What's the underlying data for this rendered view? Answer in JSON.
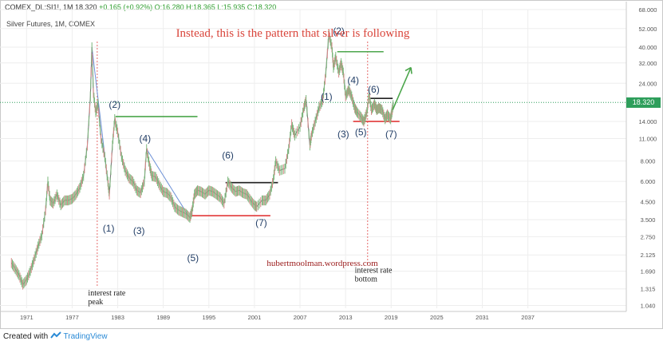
{
  "header": {
    "symbol_line": "COMEX_DL:SI1!, 1M 18.320",
    "change": "+0.165 (+0.92%)",
    "ohlc": "O:16.280 H:18.365 L:15.935 C:18.320",
    "subtitle": "Silver Futures, 1M, COMEX"
  },
  "footer": {
    "created_with": "Created with",
    "brand": "TradingView"
  },
  "chart_data": {
    "type": "line",
    "title": "Instead, this is the pattern that silver is following",
    "watermark": "hubertmoolman.wordpress.com",
    "y_scale": "log",
    "ylim": [
      1.0,
      68.0
    ],
    "xlim": [
      1968.0,
      2040.0
    ],
    "x_ticks": [
      "1971",
      "1977",
      "1983",
      "1989",
      "1995",
      "2001",
      "2007",
      "2013",
      "2019",
      "2025",
      "2031",
      "2037"
    ],
    "y_ticks": [
      "68.000",
      "52.000",
      "40.000",
      "32.000",
      "24.000",
      "18.320",
      "14.000",
      "11.000",
      "8.000",
      "6.000",
      "4.500",
      "3.500",
      "2.750",
      "2.125",
      "1.690",
      "1.315",
      "1.040"
    ],
    "last_price": "18.320",
    "series": [
      {
        "values": [
          [
            1969.5,
            1.9
          ],
          [
            1970.0,
            1.75
          ],
          [
            1970.5,
            1.6
          ],
          [
            1971.0,
            1.4
          ],
          [
            1971.5,
            1.5
          ],
          [
            1972.0,
            1.7
          ],
          [
            1972.5,
            2.0
          ],
          [
            1973.0,
            2.4
          ],
          [
            1973.5,
            2.8
          ],
          [
            1974.0,
            4.0
          ],
          [
            1974.3,
            6.0
          ],
          [
            1974.6,
            4.6
          ],
          [
            1975.0,
            4.4
          ],
          [
            1975.5,
            5.0
          ],
          [
            1976.0,
            4.3
          ],
          [
            1976.5,
            4.6
          ],
          [
            1977.0,
            4.6
          ],
          [
            1977.5,
            4.7
          ],
          [
            1978.0,
            5.0
          ],
          [
            1978.5,
            5.5
          ],
          [
            1979.0,
            6.5
          ],
          [
            1979.5,
            10.0
          ],
          [
            1979.9,
            20.0
          ],
          [
            1980.1,
            40.0
          ],
          [
            1980.3,
            21.0
          ],
          [
            1980.6,
            16.0
          ],
          [
            1980.9,
            18.0
          ],
          [
            1981.3,
            11.0
          ],
          [
            1981.8,
            8.5
          ],
          [
            1982.2,
            6.0
          ],
          [
            1982.4,
            5.0
          ],
          [
            1982.8,
            10.0
          ],
          [
            1983.1,
            14.5
          ],
          [
            1983.5,
            12.0
          ],
          [
            1984.0,
            8.5
          ],
          [
            1984.5,
            7.0
          ],
          [
            1985.0,
            6.3
          ],
          [
            1985.5,
            6.0
          ],
          [
            1986.0,
            5.3
          ],
          [
            1986.5,
            5.1
          ],
          [
            1987.0,
            6.0
          ],
          [
            1987.3,
            9.5
          ],
          [
            1987.7,
            7.5
          ],
          [
            1988.0,
            6.5
          ],
          [
            1988.5,
            6.4
          ],
          [
            1989.0,
            5.7
          ],
          [
            1989.5,
            5.2
          ],
          [
            1990.0,
            5.1
          ],
          [
            1990.5,
            4.8
          ],
          [
            1991.0,
            4.2
          ],
          [
            1991.5,
            4.0
          ],
          [
            1992.0,
            3.9
          ],
          [
            1992.5,
            3.8
          ],
          [
            1993.0,
            3.6
          ],
          [
            1993.3,
            4.0
          ],
          [
            1993.6,
            5.0
          ],
          [
            1994.0,
            5.3
          ],
          [
            1994.5,
            5.2
          ],
          [
            1995.0,
            5.0
          ],
          [
            1995.5,
            5.3
          ],
          [
            1996.0,
            5.2
          ],
          [
            1996.5,
            5.0
          ],
          [
            1997.0,
            4.8
          ],
          [
            1997.5,
            4.4
          ],
          [
            1998.0,
            6.0
          ],
          [
            1998.5,
            5.5
          ],
          [
            1999.0,
            5.2
          ],
          [
            1999.5,
            5.3
          ],
          [
            2000.0,
            5.1
          ],
          [
            2000.5,
            5.0
          ],
          [
            2001.0,
            4.6
          ],
          [
            2001.5,
            4.3
          ],
          [
            2001.8,
            4.2
          ],
          [
            2002.5,
            4.6
          ],
          [
            2003.0,
            4.6
          ],
          [
            2003.5,
            5.0
          ],
          [
            2004.0,
            6.2
          ],
          [
            2004.3,
            8.0
          ],
          [
            2004.8,
            7.0
          ],
          [
            2005.5,
            7.2
          ],
          [
            2006.0,
            9.5
          ],
          [
            2006.4,
            13.5
          ],
          [
            2006.8,
            11.5
          ],
          [
            2007.5,
            13.0
          ],
          [
            2008.0,
            17.0
          ],
          [
            2008.3,
            19.0
          ],
          [
            2008.8,
            10.0
          ],
          [
            2009.0,
            11.5
          ],
          [
            2009.5,
            14.0
          ],
          [
            2010.0,
            17.0
          ],
          [
            2010.5,
            19.0
          ],
          [
            2010.9,
            28.0
          ],
          [
            2011.3,
            48.0
          ],
          [
            2011.7,
            40.0
          ],
          [
            2011.9,
            30.0
          ],
          [
            2012.2,
            35.0
          ],
          [
            2012.6,
            28.0
          ],
          [
            2012.9,
            32.0
          ],
          [
            2013.2,
            28.0
          ],
          [
            2013.5,
            20.0
          ],
          [
            2013.9,
            22.0
          ],
          [
            2014.3,
            20.0
          ],
          [
            2014.7,
            17.0
          ],
          [
            2015.0,
            16.0
          ],
          [
            2015.5,
            15.0
          ],
          [
            2015.9,
            14.0
          ],
          [
            2016.3,
            16.0
          ],
          [
            2016.6,
            20.5
          ],
          [
            2016.9,
            16.5
          ],
          [
            2017.3,
            18.0
          ],
          [
            2017.6,
            16.5
          ],
          [
            2017.9,
            17.0
          ],
          [
            2018.3,
            16.5
          ],
          [
            2018.7,
            14.5
          ],
          [
            2019.0,
            15.5
          ],
          [
            2019.4,
            14.5
          ],
          [
            2019.6,
            16.0
          ],
          [
            2019.8,
            18.3
          ]
        ]
      }
    ],
    "annotations": [
      {
        "label": "(1)",
        "year": 1982.3,
        "price": 2.95
      },
      {
        "label": "(2)",
        "year": 1983.1,
        "price": 17.0
      },
      {
        "label": "(3)",
        "year": 1986.3,
        "price": 2.85
      },
      {
        "label": "(4)",
        "year": 1987.1,
        "price": 10.5
      },
      {
        "label": "(5)",
        "year": 1993.4,
        "price": 1.95
      },
      {
        "label": "(6)",
        "year": 1998.0,
        "price": 8.3
      },
      {
        "label": "(7)",
        "year": 2002.4,
        "price": 3.2
      },
      {
        "label": "(1)",
        "year": 2011.0,
        "price": 19.0
      },
      {
        "label": "(2)",
        "year": 2012.6,
        "price": 48.0
      },
      {
        "label": "(3)",
        "year": 2013.2,
        "price": 11.2
      },
      {
        "label": "(4)",
        "year": 2014.5,
        "price": 24.0
      },
      {
        "label": "(5)",
        "year": 2015.5,
        "price": 11.5
      },
      {
        "label": "(6)",
        "year": 2017.2,
        "price": 21.0
      },
      {
        "label": "(7)",
        "year": 2019.5,
        "price": 11.2
      }
    ],
    "notes": [
      {
        "text": "interest rate peak",
        "year": 1979.6,
        "price": 1.2
      },
      {
        "text": "interest rate bottom",
        "year": 2014.7,
        "price": 1.65
      }
    ],
    "levels": [
      {
        "color": "#4ca64c",
        "from": 1983.2,
        "to": 1994.0,
        "price": 15.0
      },
      {
        "color": "#222222",
        "from": 1997.7,
        "to": 2004.6,
        "price": 5.9
      },
      {
        "color": "#e23a3a",
        "from": 1993.2,
        "to": 2003.6,
        "price": 3.7
      },
      {
        "color": "#4ca64c",
        "from": 2012.4,
        "to": 2018.5,
        "price": 37.5
      },
      {
        "color": "#222222",
        "from": 2016.6,
        "to": 2019.7,
        "price": 19.4
      },
      {
        "color": "#e23a3a",
        "from": 2014.5,
        "to": 2020.6,
        "price": 14.0
      }
    ],
    "colors": {
      "title": "#d9453b",
      "series": "#7a7a7a",
      "wave": "#223e66",
      "price_line": "#2e9e5b",
      "vline": "#e56b6b",
      "arrow": "#4ca64c",
      "watermark": "#9b1c1c"
    }
  }
}
